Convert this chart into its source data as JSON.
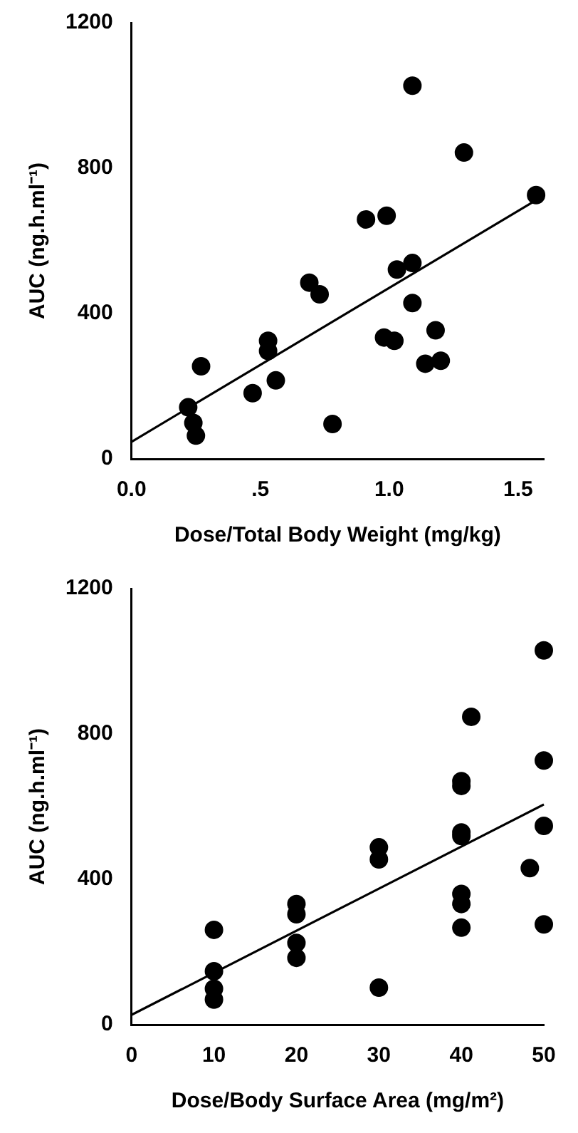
{
  "chart_data": [
    {
      "type": "scatter",
      "xlabel": "Dose/Total Body Weight (mg/kg)",
      "ylabel": "AUC (ng.h.ml⁻¹)",
      "xlim": [
        0,
        1.6
      ],
      "xticks": [
        {
          "value": 0,
          "label": "0.0"
        },
        {
          "value": 0.5,
          "label": ".5"
        },
        {
          "value": 1,
          "label": "1.0"
        },
        {
          "value": 1.5,
          "label": "1.5"
        }
      ],
      "ylim": [
        0,
        1200
      ],
      "yticks": [
        0,
        400,
        800,
        1200
      ],
      "series": [
        {
          "color": "#000000",
          "marker": "circle",
          "x": [
            1.09,
            1.29,
            1.57,
            0.91,
            0.99,
            0.69,
            0.73,
            1.09,
            1.03,
            1.09,
            1.18,
            0.98,
            1.02,
            1.14,
            1.2,
            0.53,
            0.53,
            0.56,
            0.47,
            0.27,
            0.22,
            0.24,
            0.25,
            0.78
          ],
          "values": [
            1027,
            843,
            726,
            659,
            669,
            485,
            453,
            539,
            521,
            429,
            354,
            334,
            325,
            262,
            270,
            325,
            297,
            216,
            181,
            255,
            142,
            99,
            64,
            96
          ]
        },
        {
          "type": "line",
          "color": "#000000",
          "marker": "none",
          "x": [
            0,
            1.57
          ],
          "values": [
            47,
            712
          ]
        }
      ]
    },
    {
      "type": "scatter",
      "xlabel": "Dose/Body Surface Area (mg/m²)",
      "ylabel": "AUC (ng.h.ml⁻¹)",
      "xlim": [
        0,
        50
      ],
      "xticks": [
        0,
        10,
        20,
        30,
        40,
        50
      ],
      "ylim": [
        0,
        1200
      ],
      "yticks": [
        0,
        400,
        800,
        1200
      ],
      "series": [
        {
          "color": "#000000",
          "marker": "circle",
          "x": [
            50,
            41.2,
            50,
            40,
            40,
            40,
            40,
            50,
            48.3,
            30,
            30,
            40,
            40,
            40,
            50,
            30,
            20,
            20,
            20,
            20,
            10,
            10,
            10,
            10
          ],
          "values": [
            1030,
            847,
            727,
            670,
            657,
            529,
            519,
            547,
            431,
            488,
            455,
            360,
            332,
            267,
            276,
            102,
            332,
            304,
            225,
            184,
            261,
            147,
            99,
            69
          ]
        },
        {
          "type": "line",
          "color": "#000000",
          "marker": "none",
          "x": [
            0,
            50
          ],
          "values": [
            27,
            606
          ]
        }
      ]
    }
  ]
}
